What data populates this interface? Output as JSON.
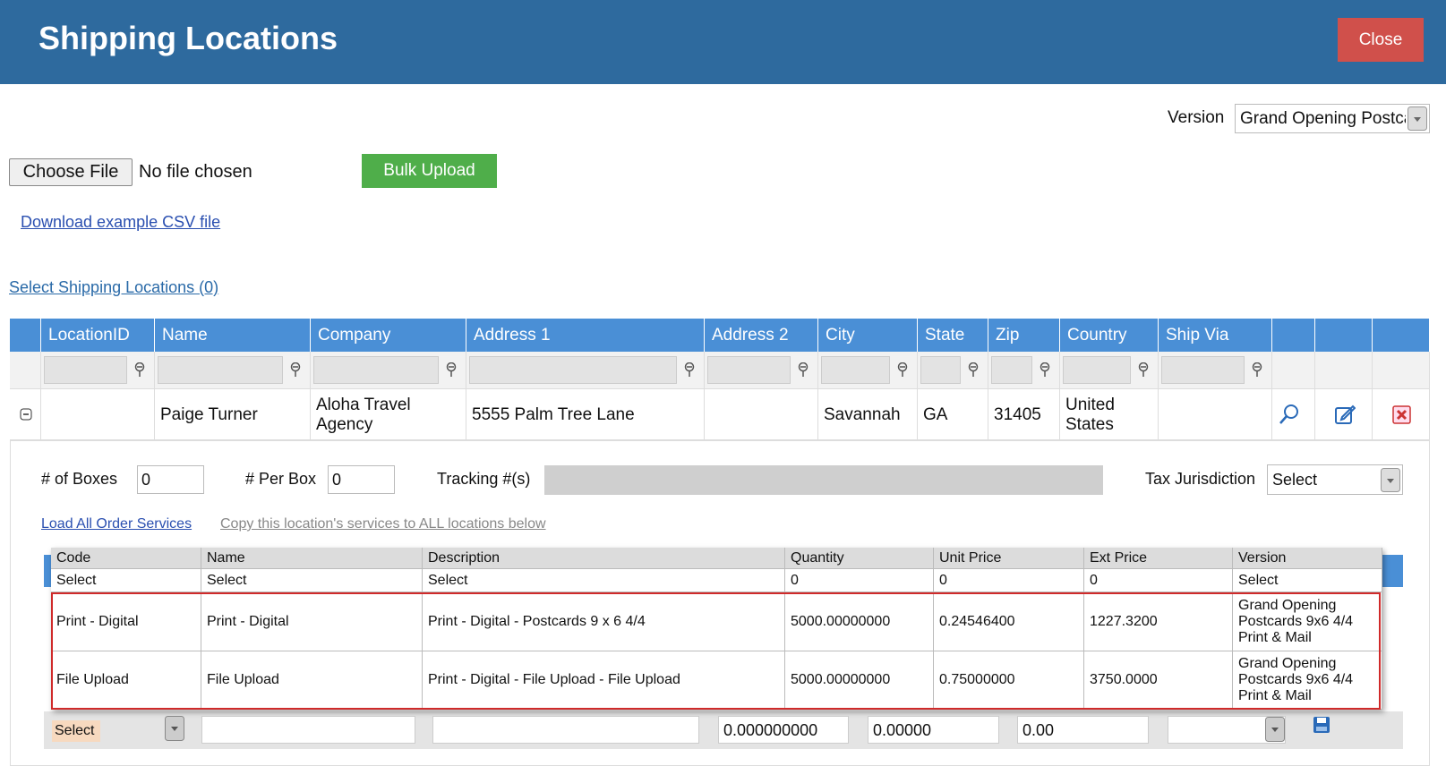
{
  "header": {
    "title": "Shipping Locations",
    "close": "Close"
  },
  "version": {
    "label": "Version",
    "value": "Grand Opening Postca"
  },
  "upload": {
    "choose_file": "Choose File",
    "no_file": "No file chosen",
    "bulk_upload": "Bulk Upload",
    "download_link": "Download example CSV file"
  },
  "select_link": "Select Shipping Locations (0)",
  "locations": {
    "columns": [
      "LocationID",
      "Name",
      "Company",
      "Address 1",
      "Address 2",
      "City",
      "State",
      "Zip",
      "Country",
      "Ship Via"
    ],
    "row": {
      "name": "Paige Turner",
      "company": "Aloha Travel Agency",
      "address1": "5555 Palm Tree Lane",
      "city": "Savannah",
      "state": "GA",
      "zip": "31405",
      "country": "United States"
    }
  },
  "details": {
    "boxes_label": "# of Boxes",
    "boxes": "0",
    "per_box_label": "# Per Box",
    "per_box": "0",
    "tracking_label": "Tracking #(s)",
    "tax_label": "Tax Jurisdiction",
    "tax_value": "Select",
    "load_link": "Load All Order Services",
    "copy_link": "Copy this location's services to ALL locations below"
  },
  "services": {
    "columns": [
      "Code",
      "Name",
      "Description",
      "Quantity",
      "Unit Price",
      "Ext Price",
      "Version"
    ],
    "rows": [
      [
        "Select",
        "Select",
        "Select",
        "0",
        "0",
        "0",
        "Select"
      ],
      [
        "Print - Digital",
        "Print - Digital",
        "Print - Digital - Postcards 9 x 6 4/4",
        "5000.00000000",
        "0.24546400",
        "1227.3200",
        "Grand Opening Postcards 9x6 4/4 Print & Mail"
      ],
      [
        "File Upload",
        "File Upload",
        "Print - Digital - File Upload - File Upload",
        "5000.00000000",
        "0.75000000",
        "3750.0000",
        "Grand Opening Postcards 9x6 4/4 Print & Mail"
      ]
    ]
  },
  "new_row": {
    "code": "Select",
    "quantity": "0.000000000",
    "unit_price": "0.00000",
    "ext_price": "0.00"
  }
}
